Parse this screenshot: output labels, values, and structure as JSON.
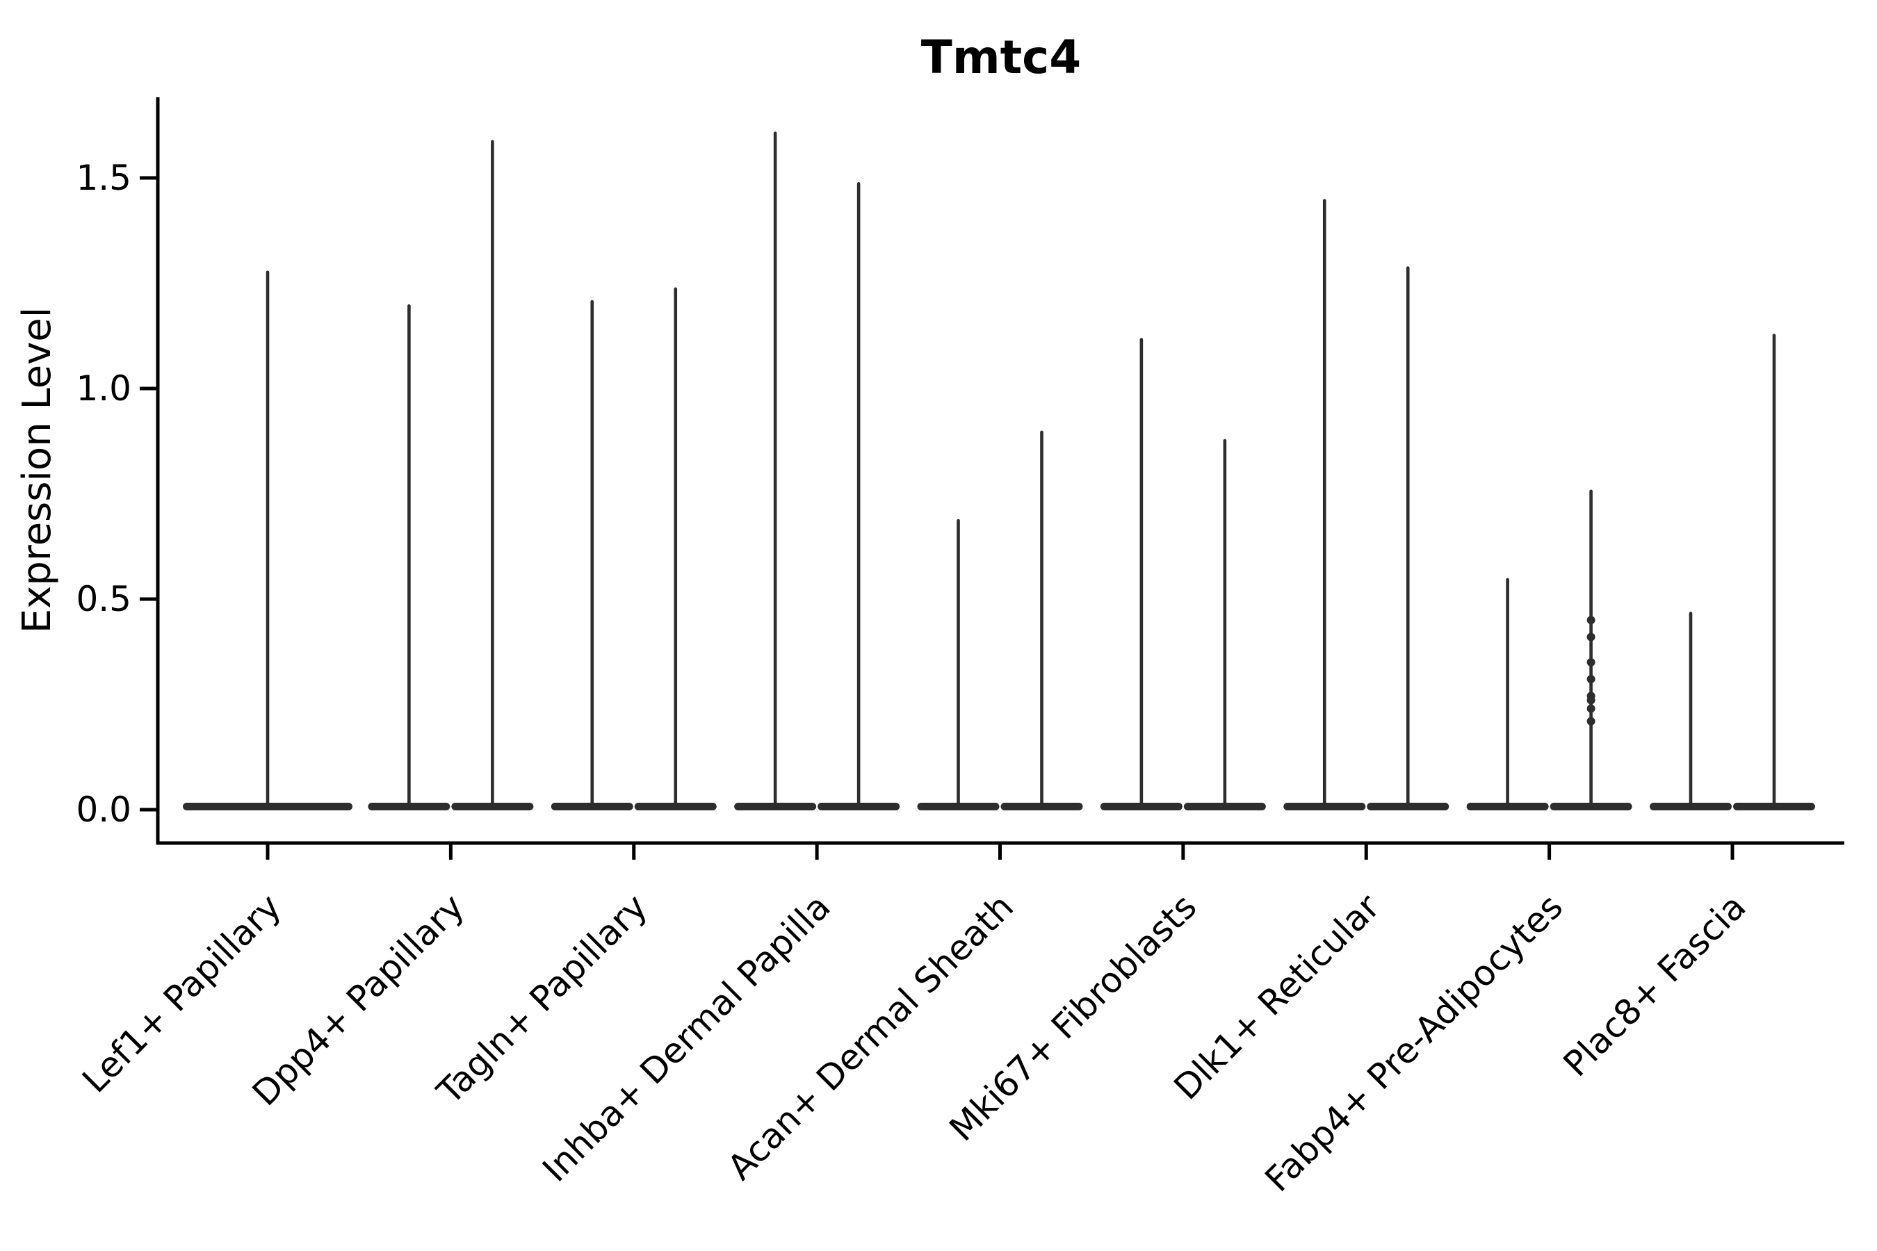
{
  "figure": {
    "background_color": "#ffffff"
  },
  "chart_data": {
    "type": "violin",
    "title": "Tmtc4",
    "xlabel": "",
    "ylabel": "Expression Level",
    "yticks": [
      0.0,
      0.5,
      1.0,
      1.5
    ],
    "ytick_labels": [
      "0.0",
      "0.5",
      "1.0",
      "1.5"
    ],
    "ylim": [
      -0.08,
      1.69
    ],
    "grid": false,
    "legend": "none",
    "x_label_rotation_deg": 45,
    "categories": [
      "Lef1+ Papillary",
      "Dpp4+ Papillary",
      "Tagln+ Papillary",
      "Inhba+ Dermal Papilla",
      "Acan+ Dermal Sheath",
      "Mki67+ Fibroblasts",
      "Dlk1+ Reticular",
      "Fabp4+ Pre-Adipocytes",
      "Plac8+ Fascia"
    ],
    "violin_shape_note": "Zero-inflated single-cell expression violins: a wide flat lobe at 0 with a very thin spike rising to the maximum expression value. Two dodged violins per category except the first category, which has one full-width violin.",
    "violins": [
      {
        "category_index": 0,
        "category": "Lef1+ Papillary",
        "slot": "center",
        "max_expression": 1.28
      },
      {
        "category_index": 1,
        "category": "Dpp4+ Papillary",
        "slot": "left",
        "max_expression": 1.2
      },
      {
        "category_index": 1,
        "category": "Dpp4+ Papillary",
        "slot": "right",
        "max_expression": 1.59
      },
      {
        "category_index": 2,
        "category": "Tagln+ Papillary",
        "slot": "left",
        "max_expression": 1.21
      },
      {
        "category_index": 2,
        "category": "Tagln+ Papillary",
        "slot": "right",
        "max_expression": 1.24
      },
      {
        "category_index": 3,
        "category": "Inhba+ Dermal Papilla",
        "slot": "left",
        "max_expression": 1.61
      },
      {
        "category_index": 3,
        "category": "Inhba+ Dermal Papilla",
        "slot": "right",
        "max_expression": 1.49
      },
      {
        "category_index": 4,
        "category": "Acan+ Dermal Sheath",
        "slot": "left",
        "max_expression": 0.69
      },
      {
        "category_index": 4,
        "category": "Acan+ Dermal Sheath",
        "slot": "right",
        "max_expression": 0.9
      },
      {
        "category_index": 5,
        "category": "Mki67+ Fibroblasts",
        "slot": "left",
        "max_expression": 1.12
      },
      {
        "category_index": 5,
        "category": "Mki67+ Fibroblasts",
        "slot": "right",
        "max_expression": 0.88
      },
      {
        "category_index": 6,
        "category": "Dlk1+ Reticular",
        "slot": "left",
        "max_expression": 1.45
      },
      {
        "category_index": 6,
        "category": "Dlk1+ Reticular",
        "slot": "right",
        "max_expression": 1.29
      },
      {
        "category_index": 7,
        "category": "Fabp4+ Pre-Adipocytes",
        "slot": "left",
        "max_expression": 0.55
      },
      {
        "category_index": 7,
        "category": "Fabp4+ Pre-Adipocytes",
        "slot": "right",
        "max_expression": 0.76
      },
      {
        "category_index": 8,
        "category": "Plac8+ Fascia",
        "slot": "left",
        "max_expression": 0.47
      },
      {
        "category_index": 8,
        "category": "Plac8+ Fascia",
        "slot": "right",
        "max_expression": 1.13
      }
    ],
    "jitter_dots": [
      {
        "category_index": 7,
        "category": "Fabp4+ Pre-Adipocytes",
        "slot": "right",
        "y_values": [
          0.45,
          0.41,
          0.35,
          0.31,
          0.27,
          0.26,
          0.24,
          0.21
        ]
      }
    ],
    "colors": {
      "violin": "#2d2d2d",
      "axis": "#000000",
      "text": "#000000",
      "background": "#ffffff"
    }
  }
}
